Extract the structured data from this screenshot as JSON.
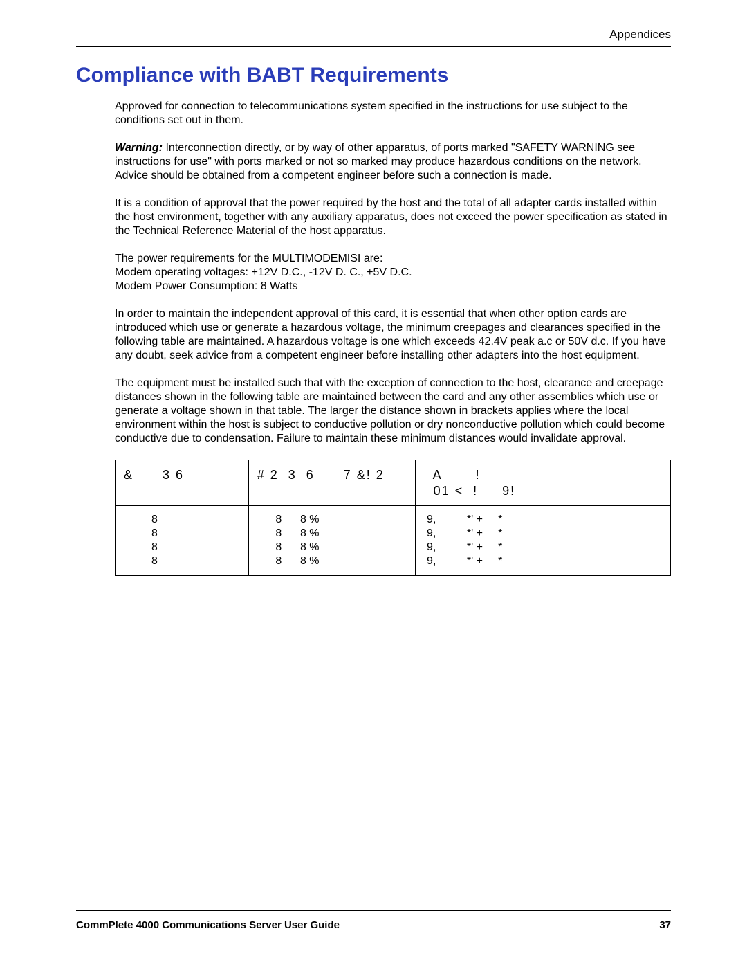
{
  "header": {
    "section": "Appendices"
  },
  "title": "Compliance with BABT Requirements",
  "paragraphs": {
    "p1": "Approved for connection to telecommunications system specified in the instructions for use subject to the conditions set out in them.",
    "warning_label": "Warning:",
    "p2_after_warning": " Interconnection directly, or by way of other apparatus, of ports marked \"SAFETY WARNING see instructions for use\" with ports marked or not so marked may produce hazardous conditions on the network. Advice should be obtained from a competent engineer before such a connection is made.",
    "p3": "It is a condition of approval that the power required by the host and the total of all adapter cards installed within the host environment, together with any auxiliary apparatus, does not exceed the power specification as stated in the Technical Reference Material of the host apparatus.",
    "pw1": "The power requirements for the MULTIMODEMISI are:",
    "pw2": "Modem operating voltages: +12V D.C., -12V D. C., +5V D.C.",
    "pw3": "Modem Power Consumption: 8 Watts",
    "p4": "In order to maintain the independent approval of this card, it is essential that when other option cards are introduced which use or generate a hazardous voltage, the minimum creepages and clearances specified in the following table are maintained. A hazardous voltage is one which exceeds 42.4V peak a.c or 50V d.c. If you have any doubt, seek advice from a competent engineer before installing other adapters into the host equipment.",
    "p5": "The equipment must be installed such that with the exception of connection to the host, clearance and creepage distances shown in the following table are maintained between the card and any other assemblies which use or generate a voltage shown in that table.  The larger the distance shown in brackets applies where the local environment within the host is subject to conductive pollution or dry nonconductive pollution which could become conductive due to condensation.  Failure to maintain these minimum distances would invalidate approval."
  },
  "table": {
    "header": {
      "c1": "&      3 6",
      "c2": "# 2  3  6      7 &! 2",
      "c3_line1": "  A       !",
      "c3_line2": "  01 <  !     9!"
    },
    "row": {
      "c1": "         8\n         8\n         8\n         8",
      "c2": "      8      8 %\n      8      8 %\n      8      8 %\n      8      8 %",
      "c3": " 9,          *' +     *\n 9,          *' +     *\n 9,          *' +     *\n 9,          *' +     *"
    }
  },
  "footer": {
    "guide_title": "CommPlete 4000 Communications Server User Guide",
    "page_number": "37"
  }
}
